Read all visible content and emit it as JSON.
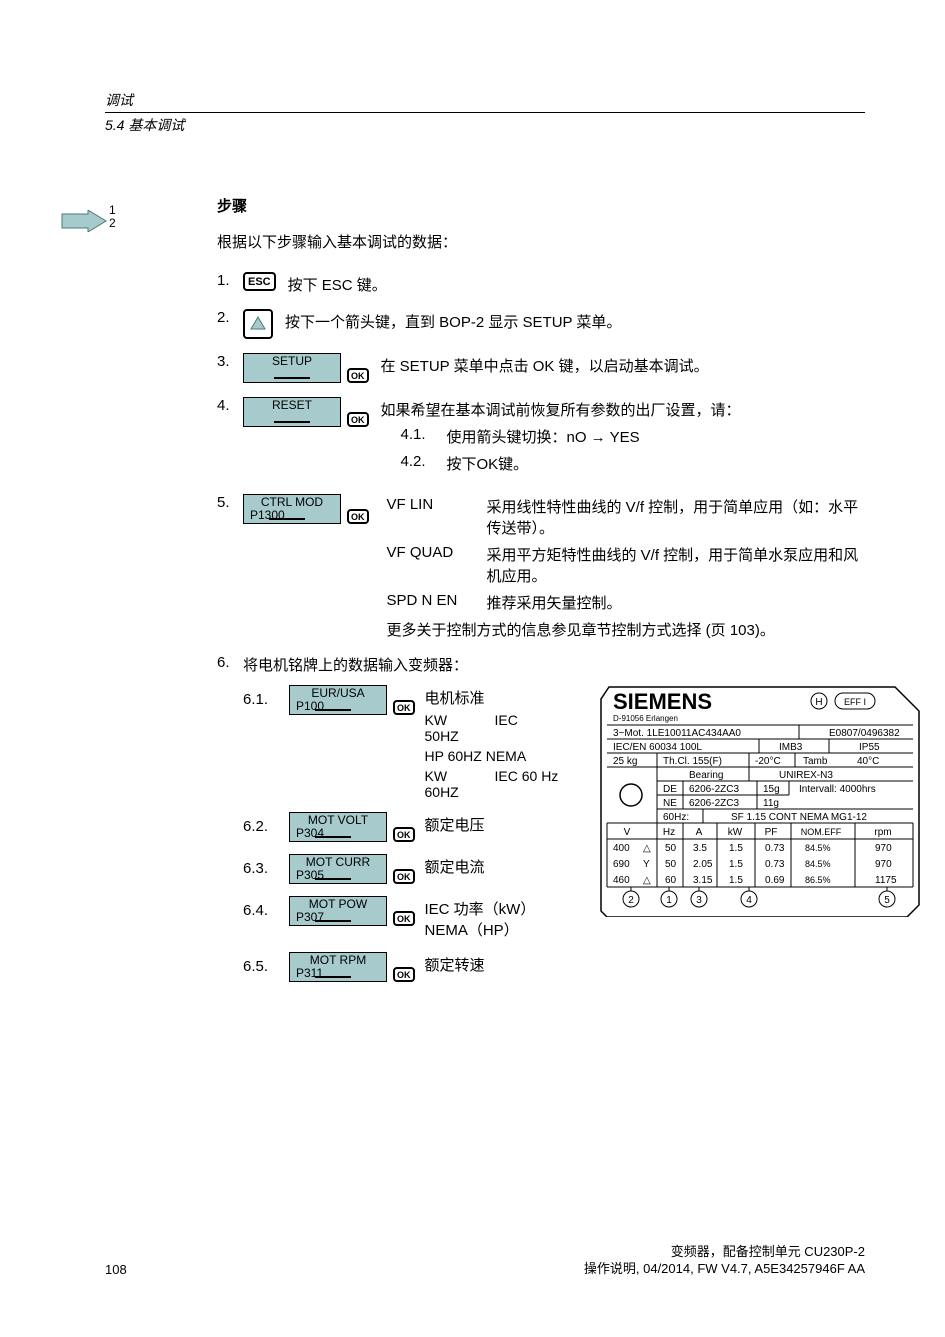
{
  "header": {
    "chapter": "调试",
    "section": "5.4 基本调试"
  },
  "arrow_notation": {
    "n1": "1",
    "n2": "2"
  },
  "title": "步骤",
  "intro": "根据以下步骤输入基本调试的数据：",
  "step1": {
    "num": "1.",
    "text": "按下 ESC 键。",
    "key_label": "ESC"
  },
  "step2": {
    "num": "2.",
    "text": "按下一个箭头键，直到 BOP-2 显示 SETUP 菜单。"
  },
  "step3": {
    "num": "3.",
    "disp_line1": "SETUP",
    "ok": "OK",
    "text": "在 SETUP 菜单中点击 OK 键，以启动基本调试。"
  },
  "step4": {
    "num": "4.",
    "disp_line1": "RESET",
    "ok": "OK",
    "text": "如果希望在基本调试前恢复所有参数的出厂设置，请：",
    "sub1_num": "4.1.",
    "sub1_text": "使用箭头键切换：nO → YES",
    "sub2_num": "4.2.",
    "sub2_text": "按下OK键。"
  },
  "step5": {
    "num": "5.",
    "disp_line1": "CTRL MOD",
    "disp_line2": "P1300",
    "ok": "OK",
    "opt1_key": "VF LIN",
    "opt1_text": "采用线性特性曲线的 V/f 控制，用于简单应用（如：水平传送带）。",
    "opt2_key": "VF QUAD",
    "opt2_text": "采用平方矩特性曲线的 V/f 控制，用于简单水泵应用和风机应用。",
    "opt3_key": "SPD N EN",
    "opt3_text": "推荐采用矢量控制。",
    "more_text": "更多关于控制方式的信息参见章节控制方式选择 (页 103)。"
  },
  "step6": {
    "num": "6.",
    "intro": "将电机铭牌上的数据输入变频器：",
    "a": {
      "num": "6.1.",
      "disp_line1": "EUR/USA",
      "disp_line2": "P100",
      "ok": "OK",
      "label": "电机标准",
      "r1_k": "KW",
      "r1_v": "IEC",
      "r1_extra": "50HZ",
      "r2": "HP 60HZ  NEMA",
      "r3_k": "KW",
      "r3_v": "IEC 60 Hz",
      "r3_extra": "60HZ"
    },
    "b": {
      "num": "6.2.",
      "disp_line1": "MOT VOLT",
      "disp_line2": "P304",
      "ok": "OK",
      "label": "额定电压"
    },
    "c": {
      "num": "6.3.",
      "disp_line1": "MOT CURR",
      "disp_line2": "P305",
      "ok": "OK",
      "label": "额定电流"
    },
    "d": {
      "num": "6.4.",
      "disp_line1": "MOT POW",
      "disp_line2": "P307",
      "ok": "OK",
      "label": "IEC 功率（kW）",
      "label2": "NEMA（HP）"
    },
    "e": {
      "num": "6.5.",
      "disp_line1": "MOT RPM",
      "disp_line2": "P311",
      "ok": "OK",
      "label": "额定转速"
    }
  },
  "nameplate": {
    "brand": "SIEMENS",
    "addr": "D-91056 Erlangen",
    "motor": "3~Mot. 1LE10011AC434AA0",
    "order": "E0807/0496382",
    "std": "IEC/EN 60034 100L",
    "mount": "IMB3",
    "ip": "IP55",
    "weight": "25 kg",
    "thcl": "Th.Cl. 155(F)",
    "tmin": "-20°C",
    "tamb": "Tamb",
    "tmax": "40°C",
    "bearing_hdr": "Bearing",
    "grease": "UNIREX-N3",
    "de_lbl": "DE",
    "de_brg": "6206-2ZC3",
    "de_g": "15g",
    "interval": "Intervall: 4000hrs",
    "ne_lbl": "NE",
    "ne_brg": "6206-2ZC3",
    "ne_g": "11g",
    "sixty": "60Hz:",
    "sf": "SF 1.15 CONT  NEMA MG1-12",
    "cols": {
      "v": "V",
      "hz": "Hz",
      "a": "A",
      "kw": "kW",
      "pf": "PF",
      "eff": "NOM.EFF",
      "rpm": "rpm"
    },
    "rows": [
      {
        "v": "400",
        "conn": "△",
        "hz": "50",
        "a": "3.5",
        "kw": "1.5",
        "pf": "0.73",
        "eff": "84.5%",
        "rpm": "970"
      },
      {
        "v": "690",
        "conn": "Y",
        "hz": "50",
        "a": "2.05",
        "kw": "1.5",
        "pf": "0.73",
        "eff": "84.5%",
        "rpm": "970"
      },
      {
        "v": "460",
        "conn": "△",
        "hz": "60",
        "a": "3.15",
        "kw": "1.5",
        "pf": "0.69",
        "eff": "86.5%",
        "rpm": "1175"
      }
    ],
    "circles": [
      "2",
      "1",
      "3",
      "4",
      "5"
    ],
    "badge_h": "H",
    "badge_eff": "EFF I"
  },
  "footer": {
    "page": "108",
    "right1": "变频器，配备控制单元  CU230P-2",
    "right2": "操作说明,  04/2014,  FW  V4.7,  A5E34257946F  AA"
  },
  "style": {
    "disp_bg": "#a7cacc",
    "arrow_fill": "#a7cacc"
  }
}
